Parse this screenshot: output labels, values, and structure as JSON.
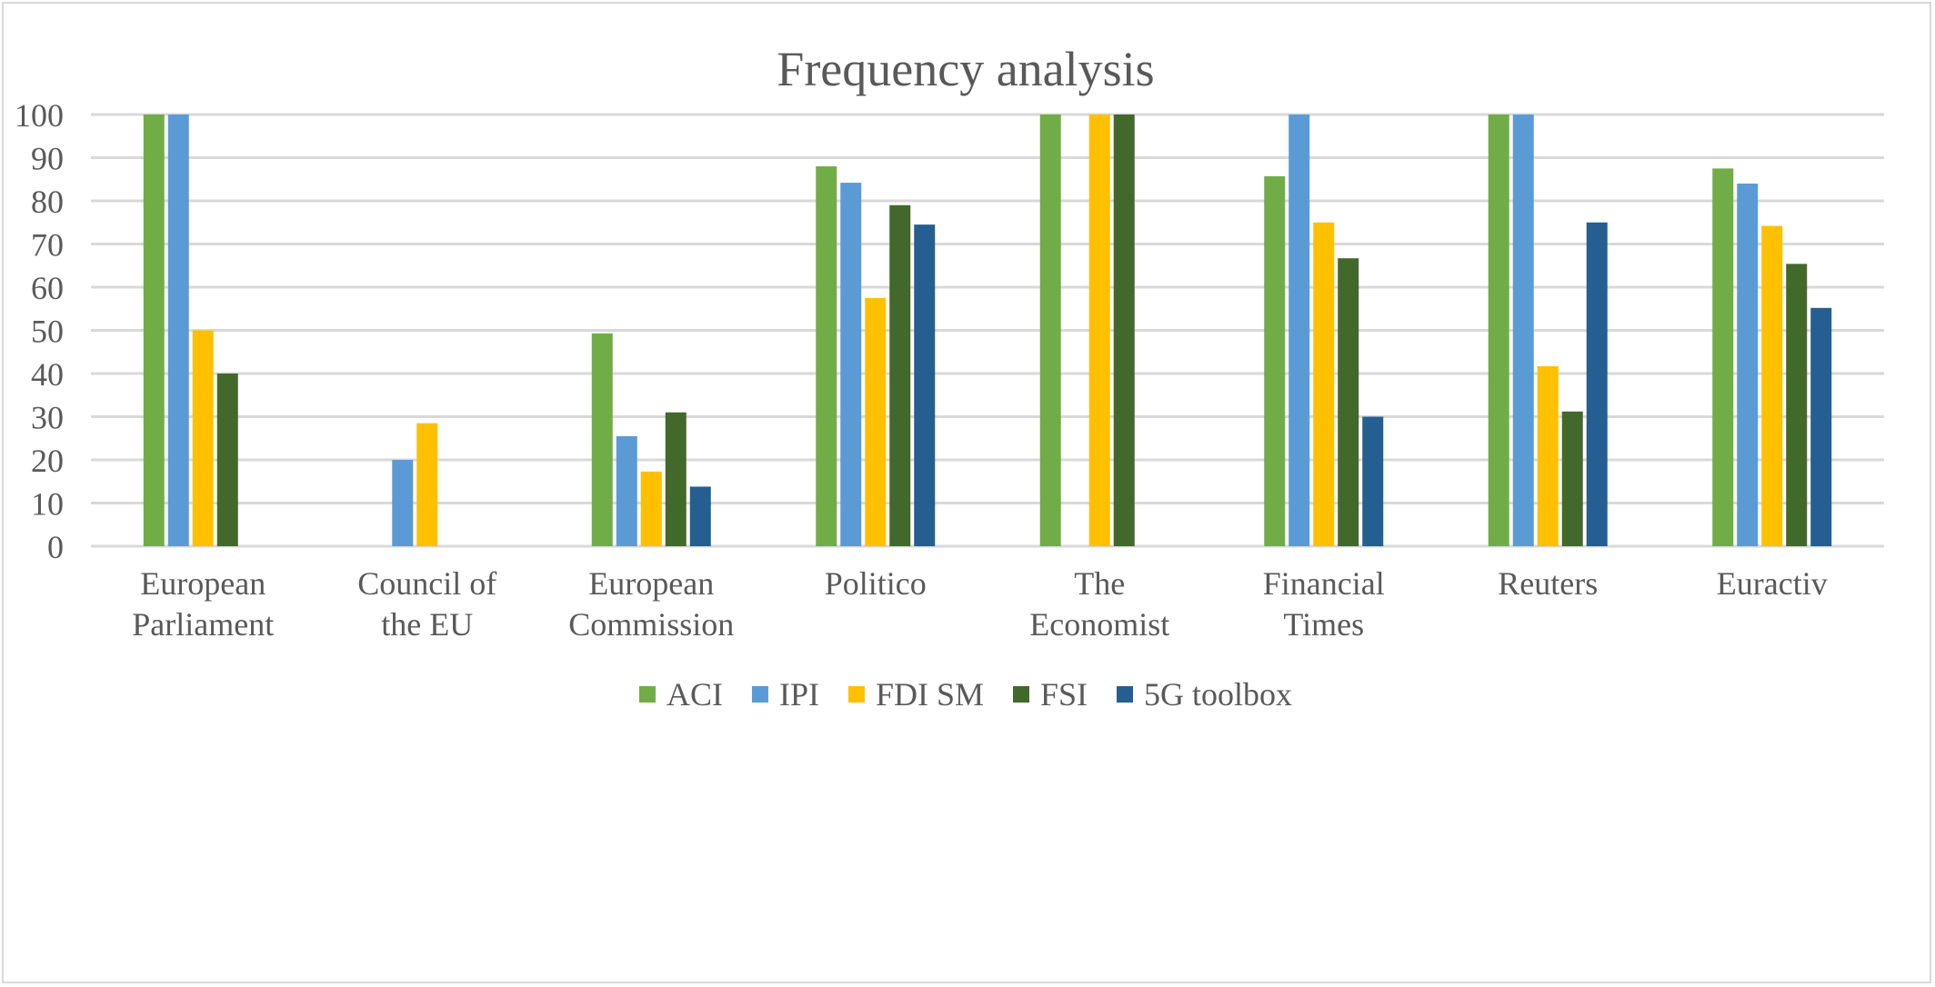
{
  "chart_data": {
    "type": "bar",
    "title": "Frequency analysis",
    "xlabel": "",
    "ylabel": "",
    "ylim": [
      0,
      100
    ],
    "yticks": [
      0,
      10,
      20,
      30,
      40,
      50,
      60,
      70,
      80,
      90,
      100
    ],
    "grid": true,
    "legend_position": "bottom",
    "categories": [
      [
        "European",
        "Parliament"
      ],
      [
        "Council of",
        "the EU"
      ],
      [
        "European",
        "Commission"
      ],
      [
        "Politico"
      ],
      [
        "The",
        "Economist"
      ],
      [
        "Financial",
        "Times"
      ],
      [
        "Reuters"
      ],
      [
        "Euractiv"
      ]
    ],
    "series": [
      {
        "name": "ACI",
        "color": "#70ad47",
        "values": [
          100,
          0,
          49.3,
          88,
          100,
          85.7,
          100,
          87.5
        ]
      },
      {
        "name": "IPI",
        "color": "#5b9bd5",
        "values": [
          100,
          20,
          25.5,
          84.2,
          0,
          100,
          100,
          84
        ]
      },
      {
        "name": "FDI SM",
        "color": "#ffc000",
        "values": [
          50,
          28.5,
          17.3,
          57.5,
          100,
          75,
          41.7,
          74.2
        ]
      },
      {
        "name": "FSI",
        "color": "#43682b",
        "values": [
          40,
          0,
          31,
          79,
          100,
          66.7,
          31.2,
          65.4
        ]
      },
      {
        "name": "5G toolbox",
        "color": "#255e91",
        "values": [
          0,
          0,
          13.8,
          74.5,
          0,
          30,
          75,
          55.2
        ]
      }
    ]
  }
}
